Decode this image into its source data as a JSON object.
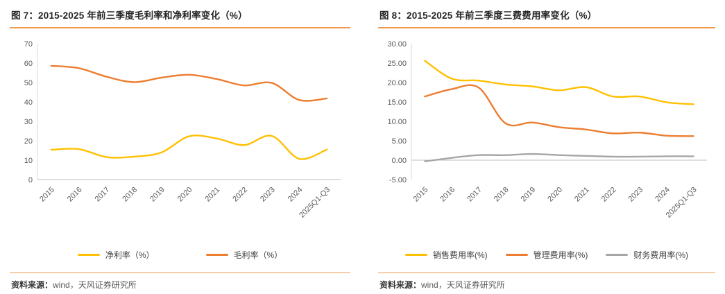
{
  "page": {
    "background": "#ffffff",
    "accent_color": "#f09a4d",
    "axis_text_color": "#595959",
    "axis_line_color": "#bfbfbf"
  },
  "panels": [
    {
      "source_label": "资料来源：",
      "source_text": "wind，天风证券研究所"
    },
    {
      "source_label": "资料来源：",
      "source_text": "wind，天风证券研究所"
    }
  ],
  "chart_data": [
    {
      "type": "line",
      "title": "图 7：2015-2025 年前三季度毛利率和净利率变化（%）",
      "categories": [
        "2015",
        "2016",
        "2017",
        "2018",
        "2019",
        "2020",
        "2021",
        "2022",
        "2023",
        "2024",
        "2025Q1-Q3"
      ],
      "series": [
        {
          "name": "净利率（%）",
          "color": "#FFC000",
          "values": [
            15.4,
            15.7,
            11.6,
            11.8,
            14.0,
            22.3,
            21.2,
            17.8,
            22.5,
            10.7,
            15.5
          ]
        },
        {
          "name": "毛利率（%）",
          "color": "#ED7D31",
          "values": [
            58.6,
            57.4,
            53.0,
            50.2,
            52.5,
            54.0,
            51.8,
            48.5,
            49.8,
            41.0,
            41.8
          ]
        }
      ],
      "xlabel": "",
      "ylabel": "",
      "ylim": [
        0,
        70
      ],
      "ytick_step": 10,
      "ytick_decimals": 0,
      "grid": false,
      "smooth_lines": true,
      "legend_position": "bottom"
    },
    {
      "type": "line",
      "title": "图 8：2015-2025 年前三季度三费费用率变化（%）",
      "categories": [
        "2015",
        "2016",
        "2017",
        "2018",
        "2019",
        "2020",
        "2021",
        "2022",
        "2023",
        "2024",
        "2025Q1-Q3"
      ],
      "series": [
        {
          "name": "销售费用率(%)",
          "color": "#FFC000",
          "values": [
            25.6,
            21.0,
            20.5,
            19.5,
            19.0,
            18.0,
            18.8,
            16.4,
            16.4,
            14.9,
            14.4
          ]
        },
        {
          "name": "管理费用率(%)",
          "color": "#ED7D31",
          "values": [
            16.4,
            18.3,
            18.7,
            9.5,
            9.7,
            8.5,
            7.9,
            6.9,
            7.1,
            6.3,
            6.2
          ]
        },
        {
          "name": "财务费用率(%)",
          "color": "#A6A6A6",
          "values": [
            -0.3,
            0.6,
            1.3,
            1.3,
            1.6,
            1.3,
            1.1,
            0.9,
            0.9,
            1.0,
            1.0
          ]
        }
      ],
      "xlabel": "",
      "ylabel": "",
      "ylim": [
        -5,
        30
      ],
      "ytick_step": 5,
      "ytick_decimals": 2,
      "grid": false,
      "smooth_lines": true,
      "legend_position": "bottom"
    }
  ]
}
